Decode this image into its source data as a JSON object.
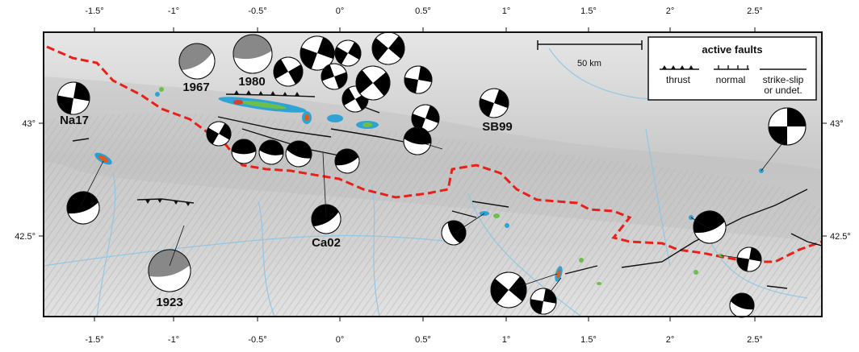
{
  "map": {
    "lon_labels": [
      "-1.5°",
      "-1°",
      "-0.5°",
      "0°",
      "0.5°",
      "1°",
      "1.5°",
      "2°",
      "2.5°"
    ],
    "lat_labels": [
      "43°",
      "42.5°"
    ],
    "legend": {
      "title": "active faults",
      "thrust": "thrust",
      "normal": "normal",
      "strike_slip_line1": "strike-slip",
      "strike_slip_line2": "or undet."
    },
    "scale_bar": "50 km",
    "mechanism_labels": {
      "na17": "Na17",
      "y1967": "1967",
      "y1980": "1980",
      "sb99": "SB99",
      "ca02": "Ca02",
      "y1923": "1923"
    },
    "colors": {
      "border": "#e8201a",
      "rivers": "#8cc6e6",
      "faults": "#111111",
      "relief": "#d9d9d9"
    }
  }
}
